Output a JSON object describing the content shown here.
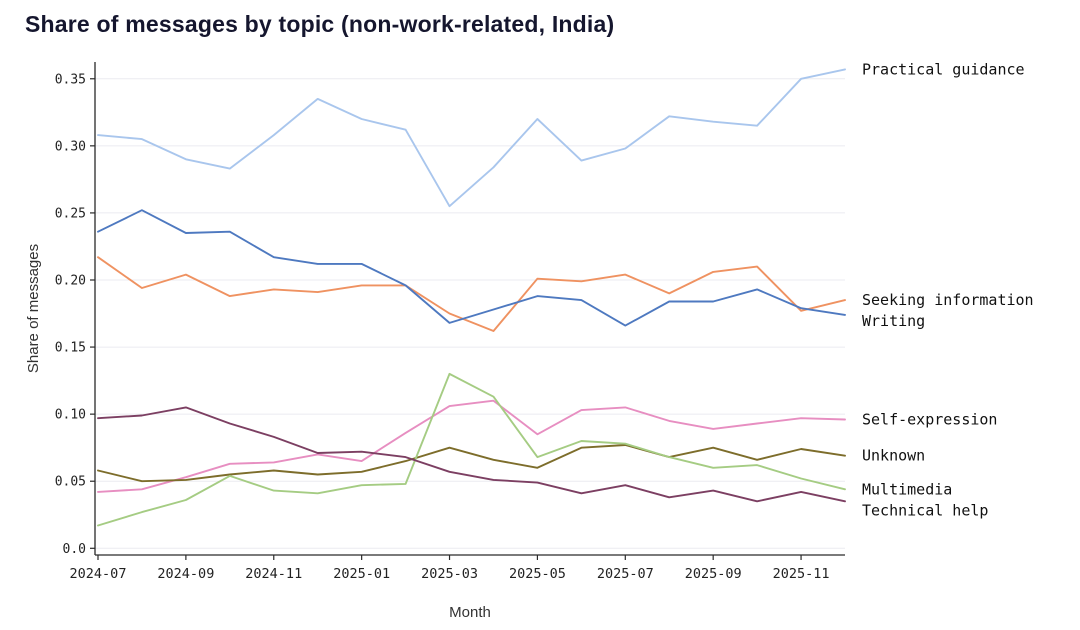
{
  "background": "#ffffff",
  "chart_data": {
    "type": "line",
    "title": "Share of messages by topic (non-work-related, India)",
    "xlabel": "Month",
    "ylabel": "Share of messages",
    "grid": true,
    "legend_position": "right-edge-labels",
    "ylim": [
      -0.005,
      0.3625
    ],
    "x": [
      "2024-07",
      "2024-08",
      "2024-09",
      "2024-10",
      "2024-11",
      "2024-12",
      "2025-01",
      "2025-02",
      "2025-03",
      "2025-04",
      "2025-05",
      "2025-06",
      "2025-07",
      "2025-08",
      "2025-09",
      "2025-10",
      "2025-11",
      "2025-12"
    ],
    "x_ticks": [
      "2024-07",
      "2024-09",
      "2024-11",
      "2025-01",
      "2025-03",
      "2025-05",
      "2025-07",
      "2025-09",
      "2025-11"
    ],
    "y_ticks": [
      0.0,
      0.05,
      0.1,
      0.15,
      0.2,
      0.25,
      0.3,
      0.35
    ],
    "series": [
      {
        "name": "Practical guidance",
        "color": "#a9c6ed",
        "values": [
          0.308,
          0.305,
          0.29,
          0.283,
          0.308,
          0.335,
          0.32,
          0.312,
          0.255,
          0.284,
          0.32,
          0.289,
          0.298,
          0.322,
          0.318,
          0.315,
          0.35,
          0.357
        ]
      },
      {
        "name": "Seeking information",
        "color": "#ef9261",
        "values": [
          0.217,
          0.194,
          0.204,
          0.188,
          0.193,
          0.191,
          0.196,
          0.196,
          0.175,
          0.162,
          0.201,
          0.199,
          0.204,
          0.19,
          0.206,
          0.21,
          0.177,
          0.185
        ]
      },
      {
        "name": "Writing",
        "color": "#4e79c0",
        "values": [
          0.236,
          0.252,
          0.235,
          0.236,
          0.217,
          0.212,
          0.212,
          0.196,
          0.168,
          0.178,
          0.188,
          0.185,
          0.166,
          0.184,
          0.184,
          0.193,
          0.179,
          0.174
        ]
      },
      {
        "name": "Self-expression",
        "color": "#e78ec1",
        "values": [
          0.042,
          0.044,
          0.053,
          0.063,
          0.064,
          0.07,
          0.065,
          0.086,
          0.106,
          0.11,
          0.085,
          0.103,
          0.105,
          0.095,
          0.089,
          0.093,
          0.097,
          0.096
        ]
      },
      {
        "name": "Unknown",
        "color": "#7d6d2b",
        "values": [
          0.058,
          0.05,
          0.051,
          0.055,
          0.058,
          0.055,
          0.057,
          0.065,
          0.075,
          0.066,
          0.06,
          0.075,
          0.077,
          0.068,
          0.075,
          0.066,
          0.074,
          0.069
        ]
      },
      {
        "name": "Multimedia",
        "color": "#a5cc83",
        "values": [
          0.017,
          0.027,
          0.036,
          0.054,
          0.043,
          0.041,
          0.047,
          0.048,
          0.13,
          0.113,
          0.068,
          0.08,
          0.078,
          0.068,
          0.06,
          0.062,
          0.052,
          0.044
        ]
      },
      {
        "name": "Technical help",
        "color": "#7c3f62",
        "values": [
          0.097,
          0.099,
          0.105,
          0.093,
          0.083,
          0.071,
          0.072,
          0.068,
          0.057,
          0.051,
          0.049,
          0.041,
          0.047,
          0.038,
          0.043,
          0.035,
          0.042,
          0.035
        ]
      }
    ],
    "style": {
      "spine_color": "#2a2a2a",
      "grid_color": "#ebebf0",
      "tick_label_color": "#222222",
      "axis_label_color": "#333333",
      "series_label_color": "#111111"
    }
  }
}
